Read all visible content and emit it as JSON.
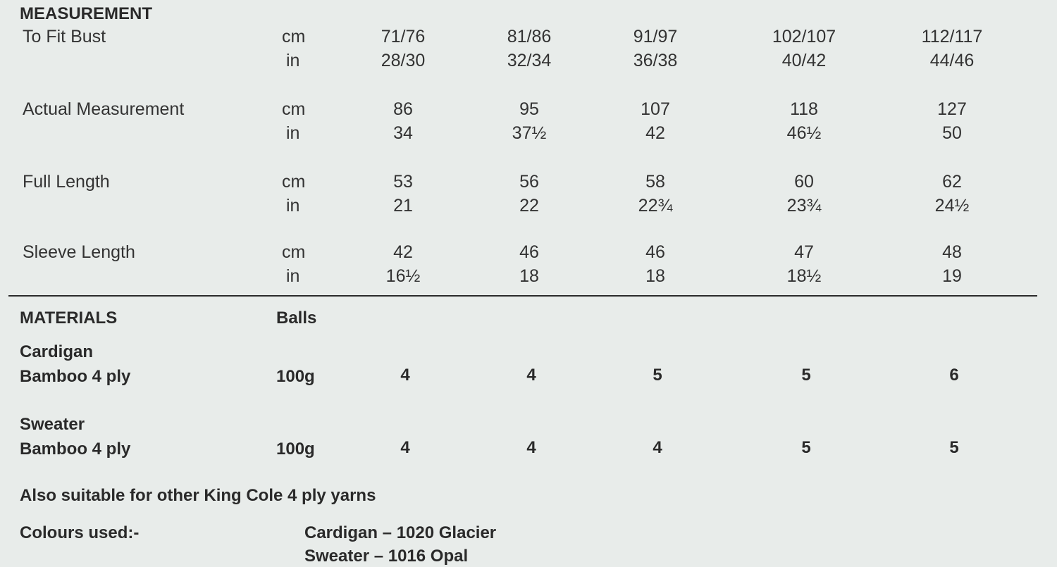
{
  "measurement": {
    "heading": "MEASUREMENT",
    "rows": [
      {
        "label": "To Fit Bust",
        "cm_unit": "cm",
        "in_unit": "in",
        "cm": [
          "71/76",
          "81/86",
          "91/97",
          "102/107",
          "112/117"
        ],
        "in": [
          "28/30",
          "32/34",
          "36/38",
          "40/42",
          "44/46"
        ]
      },
      {
        "label": "Actual Measurement",
        "cm_unit": "cm",
        "in_unit": "in",
        "cm": [
          "86",
          "95",
          "107",
          "118",
          "127"
        ],
        "in": [
          "34",
          "37½",
          "42",
          "46½",
          "50"
        ]
      },
      {
        "label": "Full Length",
        "cm_unit": "cm",
        "in_unit": "in",
        "cm": [
          "53",
          "56",
          "58",
          "60",
          "62"
        ],
        "in": [
          "21",
          "22",
          "22¾",
          "23¾",
          "24½"
        ]
      },
      {
        "label": "Sleeve Length",
        "cm_unit": "cm",
        "in_unit": "in",
        "cm": [
          "42",
          "46",
          "46",
          "47",
          "48"
        ],
        "in": [
          "16½",
          "18",
          "18",
          "18½",
          "19"
        ]
      }
    ]
  },
  "materials": {
    "heading": "MATERIALS",
    "unit_heading": "Balls",
    "items": [
      {
        "name": "Cardigan",
        "yarn": "Bamboo 4 ply",
        "weight": "100g",
        "balls": [
          "4",
          "4",
          "5",
          "5",
          "6"
        ]
      },
      {
        "name": "Sweater",
        "yarn": "Bamboo 4 ply",
        "weight": "100g",
        "balls": [
          "4",
          "4",
          "4",
          "5",
          "5"
        ]
      }
    ],
    "note": "Also suitable for other King Cole 4 ply yarns",
    "colours_label": "Colours used:-",
    "colours": [
      "Cardigan – 1020 Glacier",
      "Sweater – 1016 Opal"
    ]
  }
}
